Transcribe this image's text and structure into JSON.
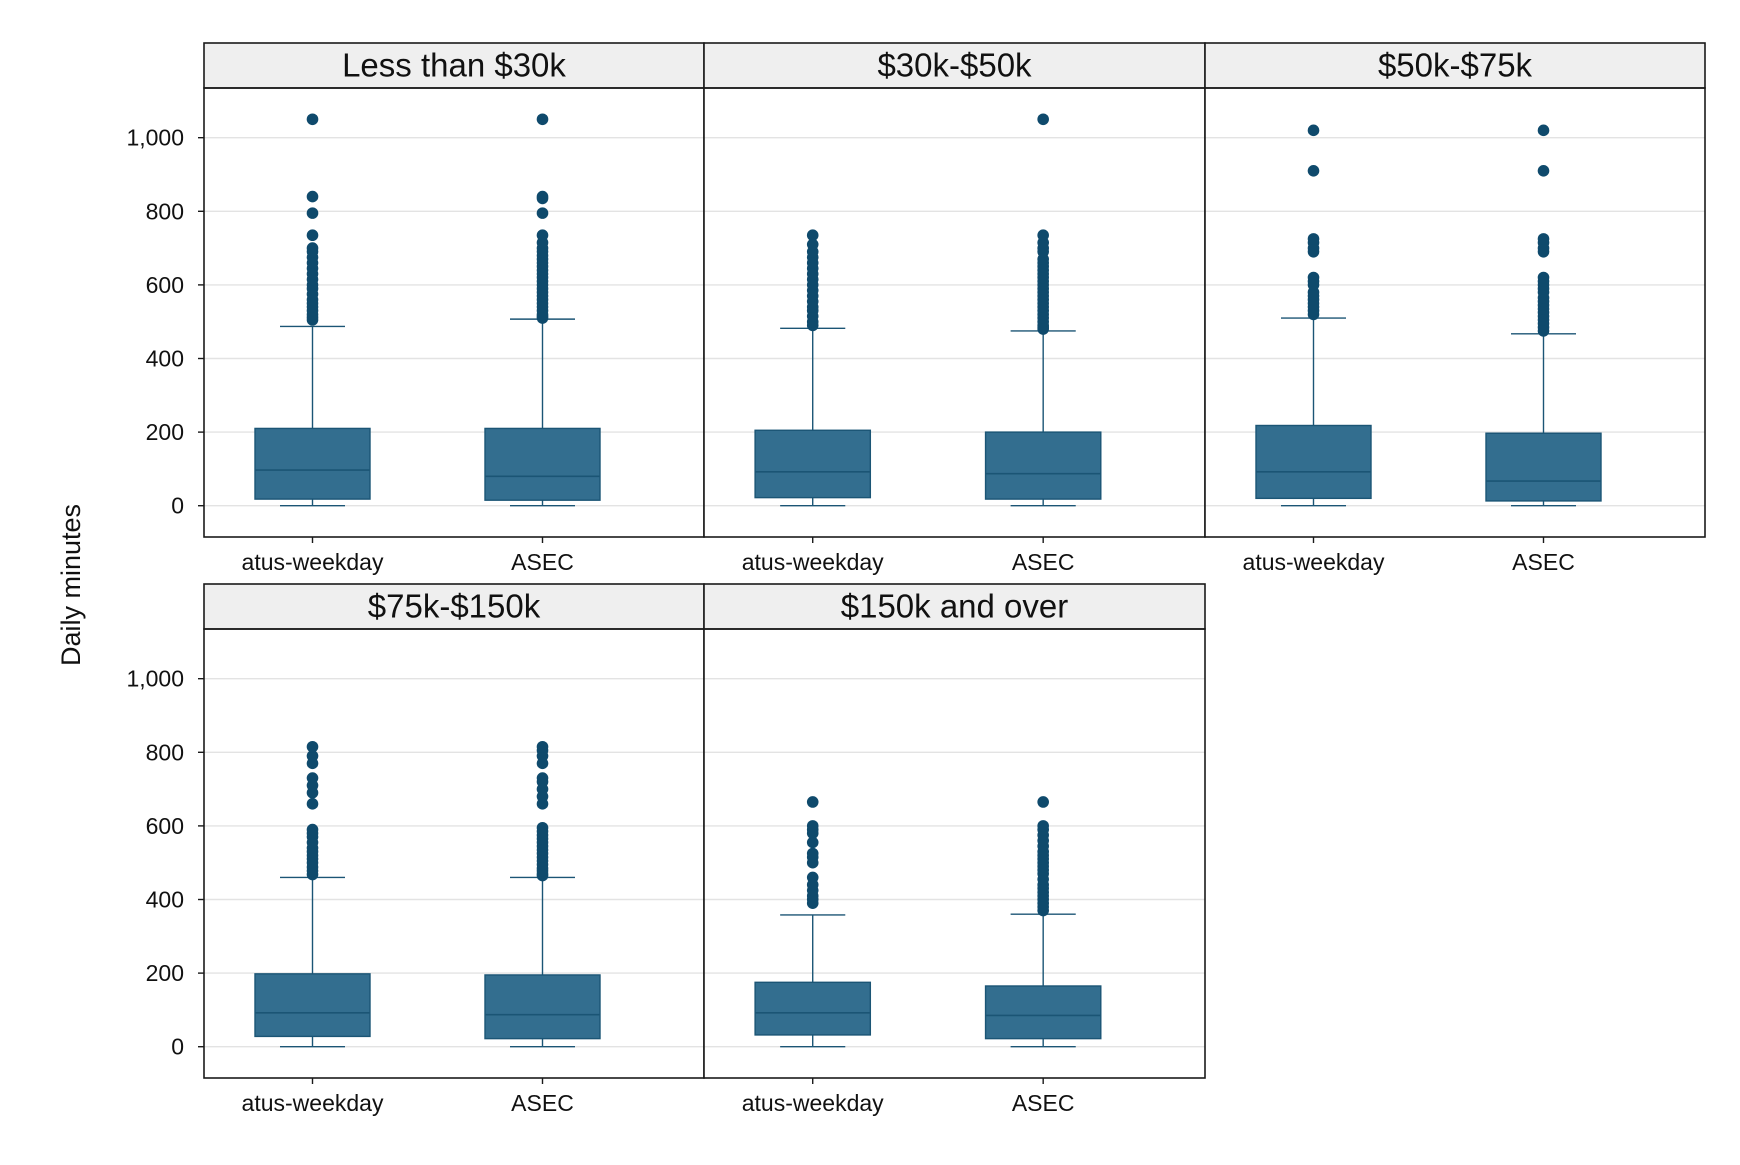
{
  "chart_data": {
    "type": "box",
    "ylabel": "Daily minutes",
    "xlabel": "",
    "ylim": [
      -85,
      1135
    ],
    "yticks": [
      0,
      200,
      400,
      600,
      800,
      1000
    ],
    "ytick_labels": [
      "0",
      "200",
      "400",
      "600",
      "800",
      "1,000"
    ],
    "grid": true,
    "categories": [
      "atus-weekday",
      "ASEC"
    ],
    "colors": {
      "box": "#336e8f",
      "edge": "#1b5575",
      "outlier": "#0f4a6c",
      "strip": "#efefef",
      "grid": "#e3e3e3"
    },
    "panels": [
      {
        "title": "Less than $30k",
        "boxes": [
          {
            "category": "atus-weekday",
            "min": 0,
            "q1": 18,
            "median": 97,
            "q3": 210,
            "max": 487,
            "outliers": [
              505,
              512,
              520,
              530,
              540,
              550,
              560,
              575,
              590,
              600,
              615,
              630,
              645,
              660,
              675,
              690,
              700,
              735,
              795,
              840,
              1050
            ]
          },
          {
            "category": "ASEC",
            "min": 0,
            "q1": 15,
            "median": 80,
            "q3": 210,
            "max": 507,
            "outliers": [
              510,
              515,
              520,
              530,
              540,
              550,
              560,
              570,
              580,
              590,
              600,
              610,
              620,
              630,
              640,
              650,
              660,
              670,
              680,
              690,
              700,
              715,
              735,
              795,
              835,
              840,
              1050
            ]
          }
        ]
      },
      {
        "title": "$30k-$50k",
        "boxes": [
          {
            "category": "atus-weekday",
            "min": 0,
            "q1": 22,
            "median": 92,
            "q3": 205,
            "max": 482,
            "outliers": [
              490,
              500,
              515,
              530,
              540,
              555,
              570,
              585,
              600,
              615,
              630,
              645,
              660,
              675,
              690,
              710,
              735
            ]
          },
          {
            "category": "ASEC",
            "min": 0,
            "q1": 18,
            "median": 87,
            "q3": 200,
            "max": 475,
            "outliers": [
              480,
              485,
              490,
              500,
              510,
              520,
              530,
              540,
              550,
              560,
              570,
              580,
              590,
              600,
              610,
              620,
              630,
              640,
              650,
              660,
              670,
              690,
              700,
              715,
              735,
              1050
            ]
          }
        ]
      },
      {
        "title": "$50k-$75k",
        "boxes": [
          {
            "category": "atus-weekday",
            "min": 0,
            "q1": 20,
            "median": 92,
            "q3": 218,
            "max": 510,
            "outliers": [
              520,
              530,
              540,
              550,
              560,
              570,
              580,
              600,
              610,
              620,
              690,
              700,
              715,
              725,
              910,
              1020
            ]
          },
          {
            "category": "ASEC",
            "min": 0,
            "q1": 13,
            "median": 67,
            "q3": 197,
            "max": 467,
            "outliers": [
              475,
              485,
              495,
              505,
              515,
              525,
              535,
              545,
              555,
              565,
              580,
              590,
              600,
              610,
              620,
              690,
              700,
              715,
              725,
              910,
              1020
            ]
          }
        ]
      },
      {
        "title": "$75k-$150k",
        "boxes": [
          {
            "category": "atus-weekday",
            "min": 0,
            "q1": 28,
            "median": 92,
            "q3": 198,
            "max": 460,
            "outliers": [
              468,
              478,
              488,
              500,
              510,
              520,
              530,
              540,
              555,
              570,
              580,
              590,
              660,
              690,
              710,
              730,
              770,
              790,
              815
            ]
          },
          {
            "category": "ASEC",
            "min": 0,
            "q1": 22,
            "median": 87,
            "q3": 195,
            "max": 460,
            "outliers": [
              465,
              470,
              478,
              485,
              495,
              505,
              515,
              525,
              535,
              545,
              555,
              565,
              575,
              585,
              595,
              660,
              680,
              700,
              720,
              730,
              770,
              790,
              805,
              815
            ]
          }
        ]
      },
      {
        "title": "$150k and over",
        "boxes": [
          {
            "category": "atus-weekday",
            "min": 0,
            "q1": 32,
            "median": 92,
            "q3": 175,
            "max": 358,
            "outliers": [
              390,
              400,
              410,
              425,
              440,
              460,
              500,
              515,
              525,
              555,
              580,
              590,
              600,
              665
            ]
          },
          {
            "category": "ASEC",
            "min": 0,
            "q1": 22,
            "median": 85,
            "q3": 165,
            "max": 360,
            "outliers": [
              370,
              380,
              390,
              400,
              410,
              420,
              430,
              440,
              455,
              470,
              480,
              490,
              500,
              510,
              520,
              530,
              545,
              560,
              575,
              590,
              600,
              665
            ]
          }
        ]
      }
    ]
  }
}
